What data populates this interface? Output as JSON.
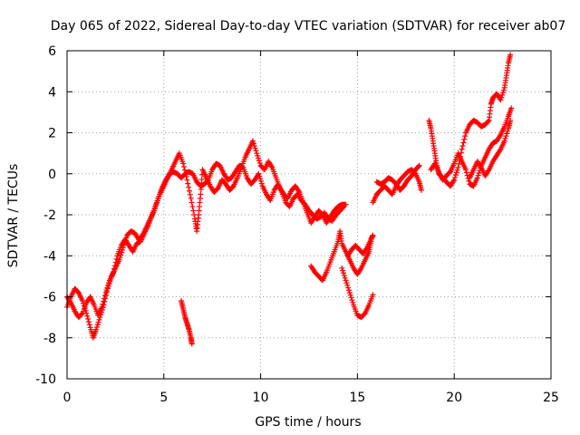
{
  "chart_data": {
    "type": "scatter",
    "title": "Day 065 of 2022, Sidereal Day-to-day VTEC variation (SDTVAR) for receiver ab07",
    "xlabel": "GPS time / hours",
    "ylabel": "SDTVAR / TECUs",
    "xlim": [
      0,
      25
    ],
    "ylim": [
      -10,
      6
    ],
    "xticks": [
      0,
      5,
      10,
      15,
      20,
      25
    ],
    "yticks": [
      -10,
      -8,
      -6,
      -4,
      -2,
      0,
      2,
      4,
      6
    ],
    "grid": true,
    "marker": "plus",
    "color": "#ff0000",
    "series": [
      {
        "points": [
          [
            0.0,
            -6.5
          ],
          [
            0.2,
            -6.0
          ],
          [
            0.4,
            -5.6
          ],
          [
            0.6,
            -5.8
          ],
          [
            0.8,
            -6.2
          ],
          [
            1.0,
            -6.8
          ],
          [
            1.2,
            -7.5
          ],
          [
            1.35,
            -8.0
          ],
          [
            1.5,
            -7.6
          ],
          [
            1.7,
            -7.0
          ],
          [
            1.9,
            -6.4
          ],
          [
            2.1,
            -5.6
          ],
          [
            2.3,
            -5.0
          ],
          [
            2.5,
            -4.6
          ],
          [
            2.7,
            -4.2
          ],
          [
            2.9,
            -3.6
          ],
          [
            3.1,
            -3.0
          ],
          [
            3.3,
            -2.8
          ],
          [
            3.5,
            -2.9
          ],
          [
            3.7,
            -3.2
          ],
          [
            3.9,
            -3.0
          ],
          [
            4.1,
            -2.6
          ],
          [
            4.3,
            -2.2
          ],
          [
            4.5,
            -1.8
          ],
          [
            4.7,
            -1.2
          ],
          [
            4.9,
            -0.7
          ],
          [
            5.1,
            -0.3
          ],
          [
            5.3,
            0.0
          ],
          [
            5.5,
            0.1
          ],
          [
            5.7,
            0.0
          ],
          [
            5.9,
            -0.2
          ],
          [
            6.1,
            0.0
          ],
          [
            6.3,
            0.1
          ],
          [
            6.5,
            0.0
          ],
          [
            6.7,
            -0.4
          ],
          [
            6.9,
            -0.6
          ],
          [
            7.1,
            -0.5
          ],
          [
            7.3,
            -0.3
          ],
          [
            7.5,
            0.2
          ],
          [
            7.7,
            0.5
          ],
          [
            7.9,
            0.4
          ],
          [
            8.1,
            0.0
          ],
          [
            8.3,
            -0.3
          ],
          [
            8.5,
            -0.2
          ],
          [
            8.7,
            0.1
          ],
          [
            8.9,
            0.4
          ],
          [
            9.1,
            0.3
          ],
          [
            9.3,
            -0.2
          ],
          [
            9.5,
            -0.5
          ],
          [
            9.7,
            -0.3
          ],
          [
            9.9,
            0.0
          ],
          [
            10.1,
            -0.6
          ],
          [
            10.3,
            -1.0
          ],
          [
            10.5,
            -1.3
          ],
          [
            10.7,
            -0.8
          ],
          [
            10.9,
            -0.5
          ],
          [
            11.1,
            -0.9
          ],
          [
            11.3,
            -1.4
          ],
          [
            11.5,
            -1.6
          ],
          [
            11.7,
            -1.2
          ],
          [
            11.9,
            -1.0
          ],
          [
            12.1,
            -1.3
          ],
          [
            12.3,
            -1.5
          ],
          [
            12.5,
            -1.8
          ],
          [
            12.7,
            -2.0
          ],
          [
            12.9,
            -2.2
          ],
          [
            13.1,
            -2.1
          ],
          [
            13.3,
            -1.9
          ],
          [
            13.5,
            -2.2
          ],
          [
            13.7,
            -2.3
          ],
          [
            13.9,
            -2.0
          ],
          [
            14.1,
            -1.8
          ],
          [
            14.3,
            -1.6
          ]
        ]
      },
      {
        "points": [
          [
            0.0,
            -6.0
          ],
          [
            0.2,
            -6.3
          ],
          [
            0.4,
            -6.7
          ],
          [
            0.6,
            -7.0
          ],
          [
            0.8,
            -6.8
          ],
          [
            1.0,
            -6.3
          ],
          [
            1.2,
            -6.0
          ],
          [
            1.4,
            -6.4
          ],
          [
            1.6,
            -6.9
          ],
          [
            1.8,
            -6.5
          ],
          [
            2.0,
            -5.8
          ],
          [
            2.2,
            -5.2
          ],
          [
            2.4,
            -4.8
          ],
          [
            2.6,
            -4.0
          ],
          [
            2.8,
            -3.5
          ],
          [
            3.0,
            -3.2
          ],
          [
            3.2,
            -3.5
          ],
          [
            3.4,
            -3.8
          ],
          [
            3.6,
            -3.4
          ],
          [
            3.8,
            -3.3
          ],
          [
            4.0,
            -2.9
          ],
          [
            4.2,
            -2.5
          ],
          [
            4.4,
            -2.0
          ],
          [
            4.6,
            -1.5
          ],
          [
            4.8,
            -1.0
          ],
          [
            5.0,
            -0.6
          ],
          [
            5.2,
            -0.2
          ],
          [
            5.4,
            0.2
          ],
          [
            5.6,
            0.6
          ],
          [
            5.8,
            1.0
          ],
          [
            6.0,
            0.5
          ],
          [
            6.2,
            -0.3
          ],
          [
            6.4,
            -1.2
          ],
          [
            6.6,
            -2.2
          ],
          [
            6.7,
            -2.8
          ],
          [
            6.8,
            -2.0
          ],
          [
            6.9,
            -1.0
          ],
          [
            7.0,
            0.2
          ],
          [
            7.2,
            -0.2
          ],
          [
            7.4,
            -0.6
          ],
          [
            7.6,
            -0.9
          ],
          [
            7.8,
            -0.7
          ],
          [
            8.0,
            -0.3
          ],
          [
            8.2,
            -0.5
          ],
          [
            8.4,
            -0.8
          ],
          [
            8.6,
            -0.6
          ],
          [
            8.8,
            -0.2
          ],
          [
            9.0,
            0.3
          ],
          [
            9.2,
            0.8
          ],
          [
            9.4,
            1.2
          ],
          [
            9.6,
            1.6
          ],
          [
            9.8,
            1.0
          ],
          [
            10.0,
            0.4
          ],
          [
            10.2,
            0.2
          ],
          [
            10.4,
            0.6
          ],
          [
            10.6,
            0.3
          ],
          [
            10.8,
            -0.2
          ],
          [
            11.0,
            -0.7
          ],
          [
            11.2,
            -1.0
          ],
          [
            11.4,
            -1.2
          ],
          [
            11.6,
            -0.8
          ],
          [
            11.8,
            -0.6
          ],
          [
            12.0,
            -0.9
          ],
          [
            12.2,
            -1.4
          ],
          [
            12.4,
            -1.9
          ],
          [
            12.6,
            -2.4
          ],
          [
            12.8,
            -2.1
          ],
          [
            13.0,
            -1.8
          ],
          [
            13.2,
            -2.0
          ],
          [
            13.4,
            -2.4
          ],
          [
            13.6,
            -2.1
          ],
          [
            13.8,
            -1.8
          ],
          [
            14.0,
            -1.6
          ],
          [
            14.2,
            -1.5
          ],
          [
            14.4,
            -1.5
          ]
        ]
      },
      {
        "points": [
          [
            5.9,
            -6.2
          ],
          [
            6.0,
            -6.6
          ],
          [
            6.1,
            -7.0
          ],
          [
            6.2,
            -7.3
          ],
          [
            6.3,
            -7.6
          ],
          [
            6.4,
            -8.0
          ],
          [
            6.45,
            -8.3
          ]
        ]
      },
      {
        "points": [
          [
            12.6,
            -4.5
          ],
          [
            12.8,
            -4.8
          ],
          [
            13.0,
            -5.0
          ],
          [
            13.2,
            -5.2
          ],
          [
            13.4,
            -4.8
          ],
          [
            13.6,
            -4.3
          ],
          [
            13.8,
            -3.8
          ],
          [
            14.0,
            -3.3
          ],
          [
            14.1,
            -2.8
          ],
          [
            14.2,
            -3.4
          ],
          [
            14.4,
            -3.8
          ],
          [
            14.6,
            -4.2
          ],
          [
            14.8,
            -4.6
          ],
          [
            15.0,
            -4.9
          ],
          [
            15.2,
            -4.6
          ],
          [
            15.4,
            -4.2
          ],
          [
            15.6,
            -3.8
          ],
          [
            15.7,
            -3.3
          ]
        ]
      },
      {
        "points": [
          [
            14.2,
            -4.6
          ],
          [
            14.4,
            -5.2
          ],
          [
            14.6,
            -5.8
          ],
          [
            14.8,
            -6.4
          ],
          [
            15.0,
            -6.9
          ],
          [
            15.2,
            -7.0
          ],
          [
            15.4,
            -6.8
          ],
          [
            15.6,
            -6.4
          ],
          [
            15.8,
            -5.9
          ]
        ]
      },
      {
        "points": [
          [
            14.5,
            -4.0
          ],
          [
            14.7,
            -3.7
          ],
          [
            14.9,
            -3.5
          ],
          [
            15.1,
            -3.7
          ],
          [
            15.3,
            -3.9
          ],
          [
            15.5,
            -3.6
          ],
          [
            15.7,
            -3.2
          ],
          [
            15.8,
            -3.0
          ]
        ]
      },
      {
        "points": [
          [
            15.8,
            -1.4
          ],
          [
            16.0,
            -1.0
          ],
          [
            16.2,
            -0.8
          ],
          [
            16.4,
            -0.6
          ],
          [
            16.6,
            -0.8
          ],
          [
            16.8,
            -1.0
          ],
          [
            17.0,
            -0.6
          ],
          [
            17.2,
            -0.3
          ],
          [
            17.4,
            -0.1
          ],
          [
            17.6,
            0.1
          ],
          [
            17.8,
            0.2
          ],
          [
            18.0,
            0.0
          ],
          [
            18.2,
            -0.4
          ],
          [
            18.3,
            -0.8
          ]
        ]
      },
      {
        "points": [
          [
            16.0,
            -0.4
          ],
          [
            16.2,
            -0.5
          ],
          [
            16.4,
            -0.4
          ],
          [
            16.6,
            -0.2
          ],
          [
            16.8,
            -0.3
          ],
          [
            17.0,
            -0.5
          ],
          [
            17.2,
            -0.8
          ],
          [
            17.4,
            -0.6
          ],
          [
            17.6,
            -0.3
          ],
          [
            17.8,
            -0.1
          ],
          [
            18.0,
            0.2
          ],
          [
            18.2,
            0.4
          ]
        ]
      },
      {
        "points": [
          [
            18.7,
            2.6
          ],
          [
            18.8,
            2.2
          ],
          [
            18.9,
            1.6
          ],
          [
            19.0,
            1.0
          ],
          [
            19.1,
            0.4
          ],
          [
            19.2,
            0.0
          ],
          [
            19.4,
            -0.2
          ],
          [
            19.6,
            -0.4
          ],
          [
            19.8,
            -0.6
          ],
          [
            20.0,
            -0.3
          ],
          [
            20.2,
            0.3
          ],
          [
            20.4,
            1.2
          ],
          [
            20.6,
            2.0
          ],
          [
            20.8,
            2.4
          ],
          [
            21.0,
            2.6
          ],
          [
            21.2,
            2.5
          ],
          [
            21.4,
            2.3
          ],
          [
            21.6,
            2.4
          ],
          [
            21.8,
            2.6
          ],
          [
            21.9,
            3.4
          ],
          [
            22.0,
            3.7
          ],
          [
            22.2,
            3.9
          ],
          [
            22.4,
            3.6
          ],
          [
            22.6,
            4.2
          ],
          [
            22.7,
            4.8
          ],
          [
            22.8,
            5.4
          ],
          [
            22.9,
            5.8
          ]
        ]
      },
      {
        "points": [
          [
            18.8,
            0.2
          ],
          [
            19.0,
            0.5
          ],
          [
            19.2,
            0.1
          ],
          [
            19.4,
            -0.3
          ],
          [
            19.6,
            -0.1
          ],
          [
            19.8,
            0.1
          ],
          [
            20.0,
            0.5
          ],
          [
            20.2,
            1.0
          ],
          [
            20.4,
            0.6
          ],
          [
            20.6,
            0.2
          ],
          [
            20.8,
            -0.5
          ],
          [
            21.0,
            -0.6
          ],
          [
            21.2,
            -0.2
          ],
          [
            21.4,
            0.4
          ],
          [
            21.6,
            0.8
          ],
          [
            21.8,
            1.2
          ],
          [
            22.0,
            1.5
          ],
          [
            22.2,
            1.6
          ],
          [
            22.4,
            1.9
          ],
          [
            22.6,
            2.3
          ],
          [
            22.8,
            2.8
          ],
          [
            22.95,
            3.2
          ]
        ]
      },
      {
        "points": [
          [
            20.8,
            -0.2
          ],
          [
            21.0,
            0.2
          ],
          [
            21.2,
            0.6
          ],
          [
            21.4,
            0.3
          ],
          [
            21.6,
            -0.1
          ],
          [
            21.8,
            0.2
          ],
          [
            22.0,
            0.6
          ],
          [
            22.2,
            0.9
          ],
          [
            22.4,
            1.2
          ],
          [
            22.6,
            1.6
          ],
          [
            22.8,
            2.2
          ],
          [
            22.9,
            2.6
          ]
        ]
      }
    ]
  }
}
